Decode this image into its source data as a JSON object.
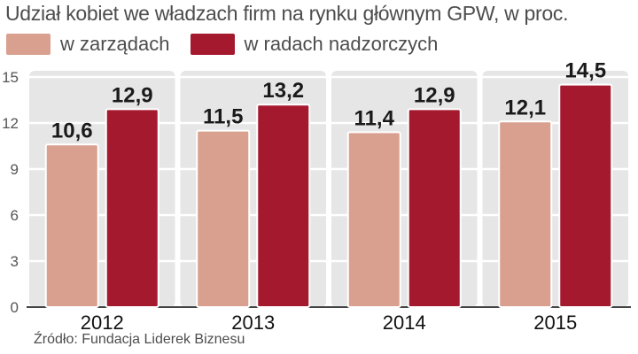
{
  "chart_data": {
    "type": "bar",
    "title": "Udział kobiet we władzach firm na rynku głównym GPW, w proc.",
    "categories": [
      "2012",
      "2013",
      "2014",
      "2015"
    ],
    "series": [
      {
        "name": "w zarządach",
        "values": [
          10.6,
          11.5,
          11.4,
          12.1
        ],
        "labels": [
          "10,6",
          "11,5",
          "11,4",
          "12,1"
        ],
        "color": "#d9a08f"
      },
      {
        "name": "w radach nadzorczych",
        "values": [
          12.9,
          13.2,
          12.9,
          14.5
        ],
        "labels": [
          "12,9",
          "13,2",
          "12,9",
          "14,5"
        ],
        "color": "#a5192e"
      }
    ],
    "yticks": [
      "0",
      "3",
      "6",
      "9",
      "12",
      "15"
    ],
    "ylim": [
      0,
      15
    ],
    "grid": true,
    "legend_position": "top-left",
    "band_color": "#e6e6e6"
  },
  "source": "Źródło: Fundacja Liderek Biznesu"
}
